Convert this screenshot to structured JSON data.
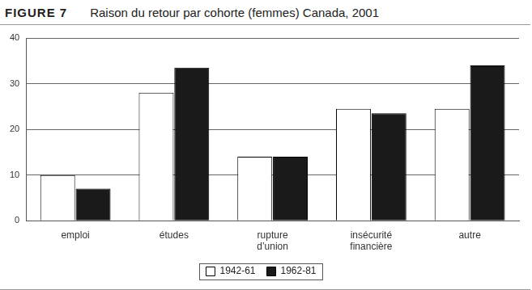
{
  "chart_data": {
    "type": "bar",
    "title": "FIGURE 7",
    "subtitle": "Raison du retour par cohorte (femmes) Canada, 2001",
    "categories": [
      "emploi",
      "études",
      "rupture d’union",
      "insécurité financière",
      "autre"
    ],
    "series": [
      {
        "name": "1942-61",
        "color": "#ffffff",
        "values": [
          10,
          28,
          14,
          24.5,
          24.5
        ]
      },
      {
        "name": "1962-81",
        "color": "#1a1a1a",
        "values": [
          7,
          33.5,
          14,
          23.5,
          34
        ]
      }
    ],
    "ylim": [
      0,
      40
    ],
    "yticks": [
      0,
      10,
      20,
      30,
      40
    ],
    "grid": true,
    "legend": "bottom"
  }
}
